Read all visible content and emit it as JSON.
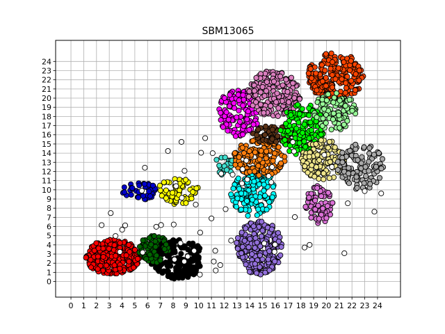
{
  "chart_data": {
    "type": "scatter",
    "title": "SBM13065",
    "xlabel": "",
    "ylabel": "",
    "xlim": [
      -1.2,
      25.8
    ],
    "ylim": [
      -1.7,
      26.3
    ],
    "xticks": [
      0,
      1,
      2,
      3,
      4,
      5,
      6,
      7,
      8,
      9,
      10,
      11,
      12,
      13,
      14,
      15,
      16,
      17,
      18,
      19,
      20,
      21,
      22,
      23,
      24
    ],
    "yticks": [
      0,
      1,
      2,
      3,
      4,
      5,
      6,
      7,
      8,
      9,
      10,
      11,
      12,
      13,
      14,
      15,
      16,
      17,
      18,
      19,
      20,
      21,
      22,
      23,
      24
    ],
    "grid": true,
    "marker_edge_color": "#000000",
    "clusters": [
      {
        "color": "#ff0000",
        "x": [
          1.1,
          5.4
        ],
        "y": [
          0.8,
          4.6
        ],
        "n": 260
      },
      {
        "color": "#000000",
        "x": [
          6.2,
          10.5
        ],
        "y": [
          0.3,
          4.6
        ],
        "n": 200
      },
      {
        "color": "#006400",
        "x": [
          5.3,
          7.8
        ],
        "y": [
          2.0,
          5.0
        ],
        "n": 70
      },
      {
        "color": "#0000cd",
        "x": [
          4.0,
          6.8
        ],
        "y": [
          8.9,
          10.8
        ],
        "n": 40
      },
      {
        "color": "#ffff00",
        "x": [
          6.8,
          10.0
        ],
        "y": [
          8.4,
          11.3
        ],
        "n": 70
      },
      {
        "color": "#9370db",
        "x": [
          12.9,
          16.6
        ],
        "y": [
          0.7,
          6.6
        ],
        "n": 240
      },
      {
        "color": "#00ffff",
        "x": [
          12.5,
          16.0
        ],
        "y": [
          7.1,
          12.5
        ],
        "n": 150
      },
      {
        "color": "#40e0d0",
        "x": [
          11.1,
          12.8
        ],
        "y": [
          11.6,
          13.7
        ],
        "n": 20
      },
      {
        "color": "#ff7f0e",
        "x": [
          12.7,
          16.8
        ],
        "y": [
          11.5,
          15.5
        ],
        "n": 150
      },
      {
        "color": "#5c3317",
        "x": [
          14.0,
          17.8
        ],
        "y": [
          15.0,
          17.0
        ],
        "n": 60
      },
      {
        "color": "#ff00ff",
        "x": [
          11.5,
          14.8
        ],
        "y": [
          15.8,
          21.0
        ],
        "n": 130
      },
      {
        "color": "#db7fbf",
        "x": [
          13.8,
          18.0
        ],
        "y": [
          18.0,
          23.0
        ],
        "n": 170
      },
      {
        "color": "#ff4500",
        "x": [
          18.5,
          22.9
        ],
        "y": [
          19.8,
          25.0
        ],
        "n": 230
      },
      {
        "color": "#00ff00",
        "x": [
          16.4,
          19.8
        ],
        "y": [
          13.5,
          19.5
        ],
        "n": 150
      },
      {
        "color": "#98fb98",
        "x": [
          19.0,
          22.3
        ],
        "y": [
          16.5,
          20.6
        ],
        "n": 110
      },
      {
        "color": "#f0e68c",
        "x": [
          18.0,
          21.5
        ],
        "y": [
          11.0,
          15.5
        ],
        "n": 120
      },
      {
        "color": "#da70d6",
        "x": [
          18.3,
          20.5
        ],
        "y": [
          6.3,
          10.5
        ],
        "n": 80
      },
      {
        "color": "#a9a9a9",
        "x": [
          20.8,
          24.5
        ],
        "y": [
          10.0,
          15.0
        ],
        "n": 110
      },
      {
        "color": "#ffffff",
        "x": [
          0.5,
          24.5
        ],
        "y": [
          0.5,
          16.0
        ],
        "n": 60
      }
    ]
  }
}
